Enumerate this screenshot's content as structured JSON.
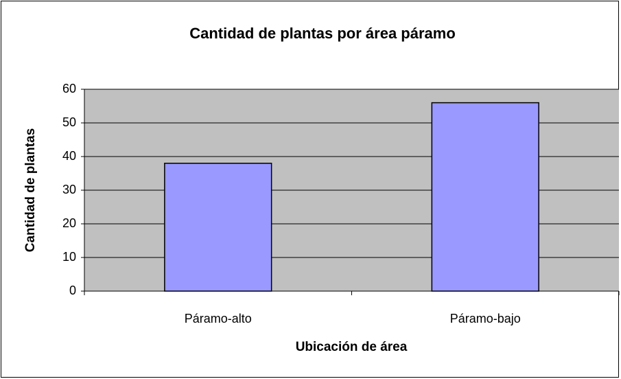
{
  "chart_data": {
    "type": "bar",
    "title": "Cantidad de plantas por área páramo",
    "x_label": "Ubicación de área",
    "y_label": "Cantidad de plantas",
    "categories": [
      "Páramo-alto",
      "Páramo-bajo"
    ],
    "values": [
      38,
      56
    ],
    "color": "#9999ff",
    "ylim": [
      0,
      60
    ],
    "yticks": [
      0,
      10,
      20,
      30,
      40,
      50,
      60
    ],
    "grid": true
  }
}
